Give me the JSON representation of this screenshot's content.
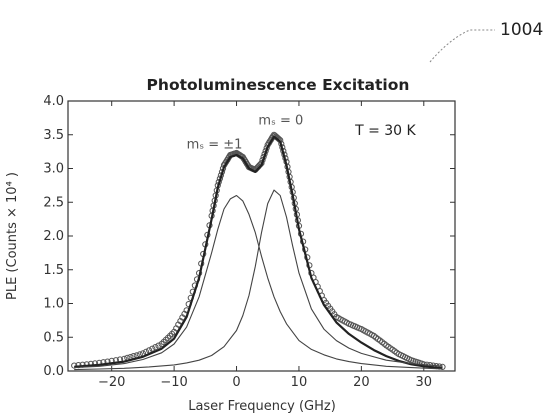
{
  "figure": {
    "reference_number": "1004"
  },
  "chart_data": {
    "type": "line",
    "title": "Photoluminescence Excitation",
    "xlabel": "Laser Frequency (GHz)",
    "ylabel": "PLE (Counts × 10⁴ )",
    "xlim": [
      -27,
      35
    ],
    "ylim": [
      0,
      4.0
    ],
    "x_ticks": [
      -20,
      -10,
      0,
      10,
      20,
      30
    ],
    "x_tick_labels": [
      "−20",
      "−10",
      "0",
      "10",
      "20",
      "30"
    ],
    "y_ticks": [
      0.0,
      0.5,
      1.0,
      1.5,
      2.0,
      2.5,
      3.0,
      3.5,
      4.0
    ],
    "y_tick_labels": [
      "0.0",
      "0.5",
      "1.0",
      "1.5",
      "2.0",
      "2.5",
      "3.0",
      "3.5",
      "4.0"
    ],
    "grid": false,
    "series": [
      {
        "style": "markers",
        "x": [
          -26,
          -22,
          -18,
          -15,
          -12,
          -10,
          -8,
          -6,
          -4,
          -3,
          -2,
          -1,
          0,
          1,
          2,
          3,
          4,
          5,
          6,
          7,
          8,
          9,
          10,
          12,
          14,
          16,
          18,
          20,
          22,
          24,
          26,
          28,
          30,
          33
        ],
        "y": [
          0.08,
          0.12,
          0.18,
          0.26,
          0.4,
          0.58,
          0.9,
          1.45,
          2.3,
          2.75,
          3.05,
          3.2,
          3.23,
          3.17,
          3.02,
          2.98,
          3.08,
          3.35,
          3.5,
          3.42,
          3.1,
          2.65,
          2.15,
          1.45,
          1.05,
          0.8,
          0.7,
          0.62,
          0.52,
          0.38,
          0.25,
          0.16,
          0.1,
          0.06
        ]
      },
      {
        "style": "line",
        "x": [
          -26,
          -22,
          -18,
          -15,
          -12,
          -10,
          -8,
          -6,
          -4,
          -3,
          -2,
          -1,
          0,
          1,
          2,
          3,
          4,
          5,
          6,
          7,
          8,
          9,
          10,
          12,
          14,
          16,
          18,
          20,
          22,
          24,
          26,
          28,
          30,
          33
        ],
        "y": [
          0.06,
          0.09,
          0.14,
          0.21,
          0.33,
          0.48,
          0.8,
          1.38,
          2.25,
          2.72,
          3.02,
          3.17,
          3.2,
          3.15,
          3.0,
          2.95,
          3.05,
          3.32,
          3.47,
          3.4,
          3.05,
          2.6,
          2.1,
          1.38,
          0.98,
          0.72,
          0.55,
          0.42,
          0.31,
          0.22,
          0.15,
          0.1,
          0.07,
          0.04
        ]
      },
      {
        "style": "thin-line",
        "x": [
          -26,
          -22,
          -18,
          -15,
          -12,
          -10,
          -8,
          -6,
          -4,
          -3,
          -2,
          -1,
          0,
          1,
          2,
          3,
          4,
          5,
          6,
          7,
          8,
          10,
          12,
          14,
          16,
          18,
          20,
          24,
          28,
          33
        ],
        "y": [
          0.05,
          0.07,
          0.11,
          0.17,
          0.27,
          0.4,
          0.65,
          1.1,
          1.75,
          2.1,
          2.4,
          2.55,
          2.6,
          2.52,
          2.32,
          2.05,
          1.7,
          1.38,
          1.1,
          0.88,
          0.7,
          0.45,
          0.32,
          0.24,
          0.18,
          0.14,
          0.11,
          0.07,
          0.05,
          0.03
        ]
      },
      {
        "style": "thin-line",
        "x": [
          -26,
          -22,
          -18,
          -14,
          -10,
          -8,
          -6,
          -4,
          -2,
          0,
          1,
          2,
          3,
          4,
          5,
          6,
          7,
          8,
          9,
          10,
          12,
          14,
          16,
          18,
          20,
          24,
          28,
          33
        ],
        "y": [
          0.02,
          0.03,
          0.04,
          0.06,
          0.09,
          0.12,
          0.16,
          0.23,
          0.36,
          0.6,
          0.82,
          1.12,
          1.55,
          2.05,
          2.48,
          2.68,
          2.6,
          2.28,
          1.85,
          1.45,
          0.92,
          0.62,
          0.45,
          0.34,
          0.26,
          0.16,
          0.11,
          0.07
        ]
      }
    ],
    "annotations": [
      {
        "text": "mₛ = ±1",
        "x": -8,
        "y": 3.3
      },
      {
        "text": "mₛ = 0",
        "x": 3.5,
        "y": 3.65
      },
      {
        "text": "T = 30 K",
        "x": 19,
        "y": 3.5
      }
    ]
  }
}
